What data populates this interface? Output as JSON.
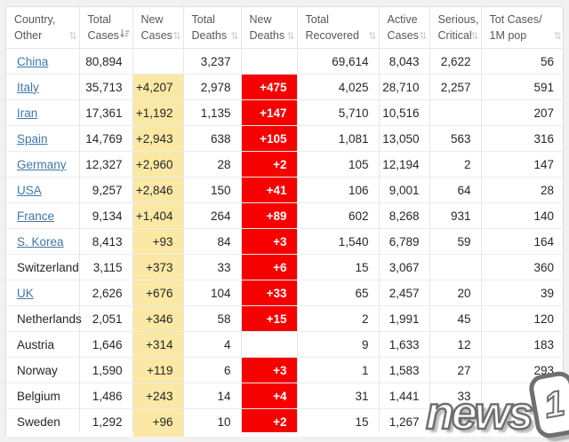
{
  "colors": {
    "new_cases_bg": "#FAE8A4",
    "new_deaths_bg": "#F60000",
    "link_blue": "#3E78A8",
    "header_text": "#54585C"
  },
  "table": {
    "columns": [
      {
        "key": "country",
        "label": "Country, Other",
        "sort_state": "none"
      },
      {
        "key": "total_cases",
        "label": "Total Cases",
        "sort_state": "descending"
      },
      {
        "key": "new_cases",
        "label": "New Cases",
        "sort_state": "none"
      },
      {
        "key": "total_deaths",
        "label": "Total Deaths",
        "sort_state": "none"
      },
      {
        "key": "new_deaths",
        "label": "New Deaths",
        "sort_state": "none"
      },
      {
        "key": "total_recovered",
        "label": "Total Recovered",
        "sort_state": "none"
      },
      {
        "key": "active_cases",
        "label": "Active Cases",
        "sort_state": "none"
      },
      {
        "key": "serious_critical",
        "label": "Serious, Critical",
        "sort_state": "none"
      },
      {
        "key": "cases_per_1m",
        "label": "Tot Cases/ 1M pop",
        "sort_state": "none"
      }
    ],
    "rows": [
      {
        "country": "China",
        "is_link": true,
        "total_cases": "80,894",
        "new_cases": "",
        "total_deaths": "3,237",
        "new_deaths": "",
        "total_recovered": "69,614",
        "active_cases": "8,043",
        "serious_critical": "2,622",
        "cases_per_1m": "56"
      },
      {
        "country": "Italy",
        "is_link": true,
        "total_cases": "35,713",
        "new_cases": "+4,207",
        "total_deaths": "2,978",
        "new_deaths": "+475",
        "total_recovered": "4,025",
        "active_cases": "28,710",
        "serious_critical": "2,257",
        "cases_per_1m": "591"
      },
      {
        "country": "Iran",
        "is_link": true,
        "total_cases": "17,361",
        "new_cases": "+1,192",
        "total_deaths": "1,135",
        "new_deaths": "+147",
        "total_recovered": "5,710",
        "active_cases": "10,516",
        "serious_critical": "",
        "cases_per_1m": "207"
      },
      {
        "country": "Spain",
        "is_link": true,
        "total_cases": "14,769",
        "new_cases": "+2,943",
        "total_deaths": "638",
        "new_deaths": "+105",
        "total_recovered": "1,081",
        "active_cases": "13,050",
        "serious_critical": "563",
        "cases_per_1m": "316"
      },
      {
        "country": "Germany",
        "is_link": true,
        "total_cases": "12,327",
        "new_cases": "+2,960",
        "total_deaths": "28",
        "new_deaths": "+2",
        "total_recovered": "105",
        "active_cases": "12,194",
        "serious_critical": "2",
        "cases_per_1m": "147"
      },
      {
        "country": "USA",
        "is_link": true,
        "total_cases": "9,257",
        "new_cases": "+2,846",
        "total_deaths": "150",
        "new_deaths": "+41",
        "total_recovered": "106",
        "active_cases": "9,001",
        "serious_critical": "64",
        "cases_per_1m": "28"
      },
      {
        "country": "France",
        "is_link": true,
        "total_cases": "9,134",
        "new_cases": "+1,404",
        "total_deaths": "264",
        "new_deaths": "+89",
        "total_recovered": "602",
        "active_cases": "8,268",
        "serious_critical": "931",
        "cases_per_1m": "140"
      },
      {
        "country": "S. Korea",
        "is_link": true,
        "total_cases": "8,413",
        "new_cases": "+93",
        "total_deaths": "84",
        "new_deaths": "+3",
        "total_recovered": "1,540",
        "active_cases": "6,789",
        "serious_critical": "59",
        "cases_per_1m": "164"
      },
      {
        "country": "Switzerland",
        "is_link": false,
        "total_cases": "3,115",
        "new_cases": "+373",
        "total_deaths": "33",
        "new_deaths": "+6",
        "total_recovered": "15",
        "active_cases": "3,067",
        "serious_critical": "",
        "cases_per_1m": "360"
      },
      {
        "country": "UK",
        "is_link": true,
        "total_cases": "2,626",
        "new_cases": "+676",
        "total_deaths": "104",
        "new_deaths": "+33",
        "total_recovered": "65",
        "active_cases": "2,457",
        "serious_critical": "20",
        "cases_per_1m": "39"
      },
      {
        "country": "Netherlands",
        "is_link": false,
        "total_cases": "2,051",
        "new_cases": "+346",
        "total_deaths": "58",
        "new_deaths": "+15",
        "total_recovered": "2",
        "active_cases": "1,991",
        "serious_critical": "45",
        "cases_per_1m": "120"
      },
      {
        "country": "Austria",
        "is_link": false,
        "total_cases": "1,646",
        "new_cases": "+314",
        "total_deaths": "4",
        "new_deaths": "",
        "total_recovered": "9",
        "active_cases": "1,633",
        "serious_critical": "12",
        "cases_per_1m": "183"
      },
      {
        "country": "Norway",
        "is_link": false,
        "total_cases": "1,590",
        "new_cases": "+119",
        "total_deaths": "6",
        "new_deaths": "+3",
        "total_recovered": "1",
        "active_cases": "1,583",
        "serious_critical": "27",
        "cases_per_1m": "293"
      },
      {
        "country": "Belgium",
        "is_link": false,
        "total_cases": "1,486",
        "new_cases": "+243",
        "total_deaths": "14",
        "new_deaths": "+4",
        "total_recovered": "31",
        "active_cases": "1,441",
        "serious_critical": "33",
        "cases_per_1m": "128"
      },
      {
        "country": "Sweden",
        "is_link": false,
        "total_cases": "1,292",
        "new_cases": "+96",
        "total_deaths": "10",
        "new_deaths": "+2",
        "total_recovered": "15",
        "active_cases": "1,267",
        "serious_critical": "12",
        "cases_per_1m": ""
      }
    ]
  },
  "watermark": {
    "text": "news",
    "badge": "1"
  }
}
